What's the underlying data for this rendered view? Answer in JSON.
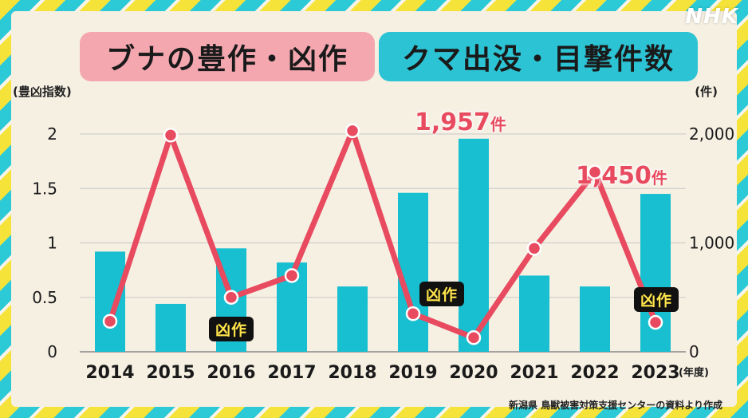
{
  "logo": "NHK",
  "title_left": "ブナの豊作・凶作",
  "title_right": "クマ出没・目撃件数",
  "left_axis_unit": "(豊凶指数)",
  "right_axis_unit": "(件)",
  "x_unit": "(年度)",
  "source": "新潟県 鳥獣被害対策支援センターの資料より作成",
  "bad_harvest_label": "凶作",
  "callouts": [
    {
      "value": "1,957",
      "unit": "件"
    },
    {
      "value": "1,450",
      "unit": "件"
    }
  ],
  "colors": {
    "bar": "#17bfd1",
    "line": "#e84a5f",
    "label_bg": "#111111",
    "label_text": "#ffe54a"
  },
  "chart_data": {
    "type": "bar+line",
    "categories": [
      "2014",
      "2015",
      "2016",
      "2017",
      "2018",
      "2019",
      "2020",
      "2021",
      "2022",
      "2023"
    ],
    "bar_series": {
      "axis": "right",
      "values": [
        920,
        440,
        950,
        820,
        600,
        1460,
        1957,
        700,
        600,
        1450
      ]
    },
    "line_series": {
      "axis": "left",
      "values": [
        0.28,
        1.99,
        0.5,
        0.7,
        2.03,
        0.35,
        0.13,
        0.95,
        1.65,
        0.27
      ]
    },
    "bad_harvest_years": [
      "2016",
      "2019",
      "2023"
    ],
    "y_left": {
      "min": 0,
      "max": 2,
      "ticks": [
        "0",
        "0.5",
        "1",
        "1.5",
        "2"
      ]
    },
    "y_right": {
      "min": 0,
      "max": 2000,
      "ticks": [
        "0",
        "1,000",
        "2,000"
      ]
    },
    "grid": true
  }
}
